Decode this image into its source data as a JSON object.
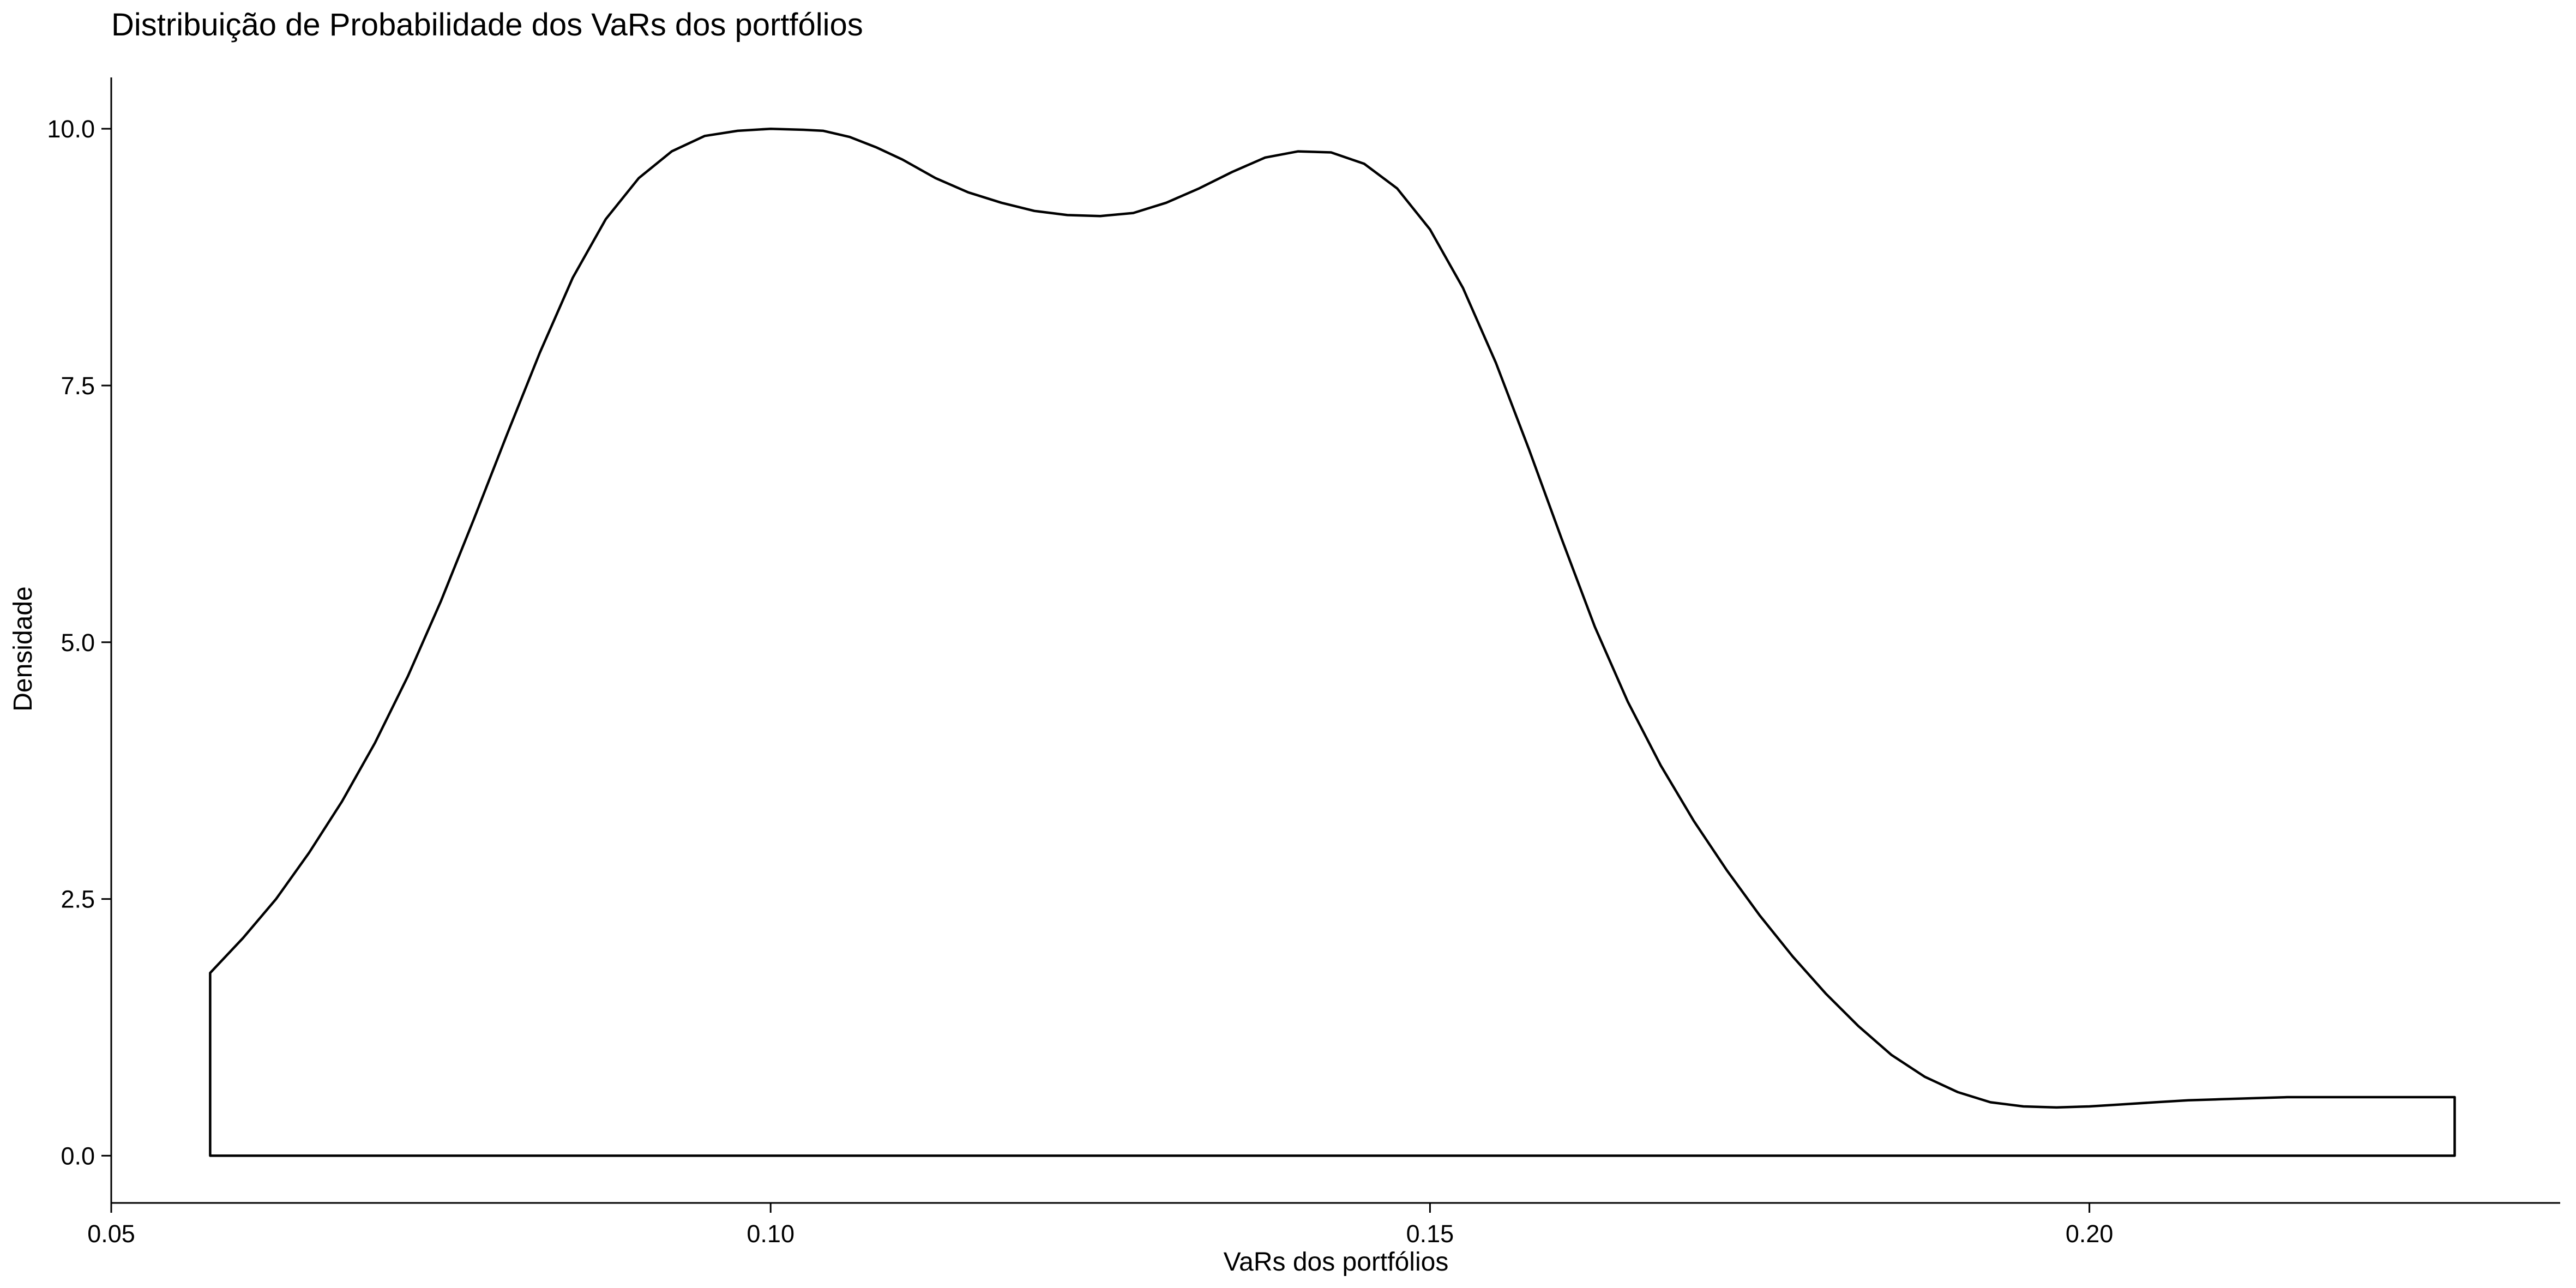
{
  "chart_data": {
    "type": "area",
    "title": "Distribuição de Probabilidade dos VaRs dos portfólios",
    "xlabel": "VaRs dos portfólios",
    "ylabel": "Densidade",
    "xlim": [
      0.05,
      0.2357
    ],
    "ylim": [
      -0.46,
      10.5
    ],
    "x_ticks": [
      {
        "value": 0.05,
        "label": "0.05"
      },
      {
        "value": 0.1,
        "label": "0.10"
      },
      {
        "value": 0.15,
        "label": "0.15"
      },
      {
        "value": 0.2,
        "label": "0.20"
      }
    ],
    "y_ticks": [
      {
        "value": 0.0,
        "label": "0.0"
      },
      {
        "value": 2.5,
        "label": "2.5"
      },
      {
        "value": 5.0,
        "label": "5.0"
      },
      {
        "value": 7.5,
        "label": "7.5"
      },
      {
        "value": 10.0,
        "label": "10.0"
      }
    ],
    "grid": false,
    "fill": "none",
    "line_color": "#000000",
    "series": [
      {
        "x": [
          0.0575,
          0.06,
          0.0625,
          0.065,
          0.0675,
          0.07,
          0.0725,
          0.075,
          0.0775,
          0.08,
          0.0825,
          0.085,
          0.0875,
          0.09,
          0.0925,
          0.095,
          0.0975,
          0.1,
          0.1025,
          0.104,
          0.106,
          0.108,
          0.11,
          0.1125,
          0.115,
          0.1175,
          0.12,
          0.1225,
          0.125,
          0.1275,
          0.13,
          0.1325,
          0.135,
          0.1375,
          0.14,
          0.1425,
          0.145,
          0.1475,
          0.15,
          0.1525,
          0.155,
          0.1575,
          0.16,
          0.1625,
          0.165,
          0.1675,
          0.17,
          0.1725,
          0.175,
          0.1775,
          0.18,
          0.1825,
          0.185,
          0.1875,
          0.19,
          0.1925,
          0.195,
          0.1975,
          0.2,
          0.2025,
          0.205,
          0.2075,
          0.21,
          0.2125,
          0.215,
          0.2175,
          0.22,
          0.2225,
          0.225,
          0.2277
        ],
        "y": [
          1.78,
          2.12,
          2.5,
          2.95,
          3.45,
          4.02,
          4.67,
          5.4,
          6.2,
          7.02,
          7.82,
          8.55,
          9.12,
          9.52,
          9.78,
          9.93,
          9.98,
          10.0,
          9.99,
          9.98,
          9.92,
          9.82,
          9.7,
          9.52,
          9.38,
          9.28,
          9.2,
          9.16,
          9.15,
          9.18,
          9.28,
          9.42,
          9.58,
          9.72,
          9.78,
          9.77,
          9.66,
          9.42,
          9.02,
          8.45,
          7.72,
          6.88,
          6.0,
          5.15,
          4.42,
          3.8,
          3.26,
          2.78,
          2.34,
          1.94,
          1.58,
          1.26,
          0.98,
          0.77,
          0.62,
          0.52,
          0.48,
          0.47,
          0.48,
          0.5,
          0.52,
          0.54,
          0.55,
          0.56,
          0.57,
          0.57,
          0.57,
          0.57,
          0.57,
          0.57
        ]
      }
    ]
  }
}
